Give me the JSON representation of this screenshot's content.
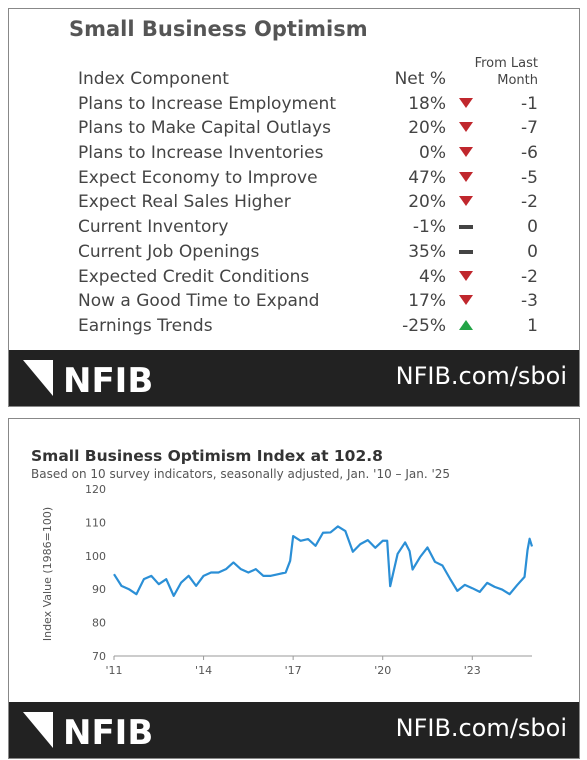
{
  "table": {
    "title": "Small Business Optimism",
    "columns": [
      "Index Component",
      "Net %",
      "From Last Month"
    ],
    "rows": [
      {
        "component": "Plans to Increase Employment",
        "net": "18%",
        "trend": "down",
        "change": "-1"
      },
      {
        "component": "Plans to Make Capital Outlays",
        "net": "20%",
        "trend": "down",
        "change": "-7"
      },
      {
        "component": "Plans to Increase Inventories",
        "net": "0%",
        "trend": "down",
        "change": "-6"
      },
      {
        "component": "Expect Economy to Improve",
        "net": "47%",
        "trend": "down",
        "change": "-5"
      },
      {
        "component": "Expect Real Sales Higher",
        "net": "20%",
        "trend": "down",
        "change": "-2"
      },
      {
        "component": "Current Inventory",
        "net": "-1%",
        "trend": "flat",
        "change": "0"
      },
      {
        "component": "Current Job Openings",
        "net": "35%",
        "trend": "flat",
        "change": "0"
      },
      {
        "component": "Expected Credit Conditions",
        "net": "4%",
        "trend": "down",
        "change": "-2"
      },
      {
        "component": "Now a Good Time to Expand",
        "net": "17%",
        "trend": "down",
        "change": "-3"
      },
      {
        "component": "Earnings Trends",
        "net": "-25%",
        "trend": "up",
        "change": "1"
      }
    ]
  },
  "footer": {
    "logo": "NFIB",
    "url": "NFIB.com/sboi"
  },
  "chart_data": {
    "type": "line",
    "title": "Small Business Optimism Index at 102.8",
    "subtitle": "Based on 10 survey indicators, seasonally adjusted,  Jan. '10 – Jan. '25",
    "y_label": "Index Value (1986=100)",
    "x": [
      2011,
      2011.25,
      2011.5,
      2011.75,
      2012,
      2012.25,
      2012.5,
      2012.75,
      2013,
      2013.25,
      2013.5,
      2013.75,
      2014,
      2014.25,
      2014.5,
      2014.75,
      2015,
      2015.25,
      2015.5,
      2015.75,
      2016,
      2016.25,
      2016.5,
      2016.75,
      2016.9,
      2017,
      2017.25,
      2017.5,
      2017.75,
      2018,
      2018.25,
      2018.5,
      2018.75,
      2019,
      2019.25,
      2019.5,
      2019.75,
      2020,
      2020.15,
      2020.25,
      2020.5,
      2020.75,
      2020.9,
      2021,
      2021.25,
      2021.5,
      2021.75,
      2022,
      2022.25,
      2022.5,
      2022.75,
      2023,
      2023.25,
      2023.5,
      2023.75,
      2024,
      2024.25,
      2024.5,
      2024.75,
      2024.85,
      2024.92,
      2025
    ],
    "series": [
      {
        "name": "Optimism Index",
        "color": "#2b8fd6",
        "values": [
          94.5,
          91,
          90,
          88.5,
          93,
          94,
          91.5,
          93,
          88,
          92,
          94,
          91,
          94,
          95,
          95,
          96,
          98,
          96,
          95,
          96,
          94,
          94,
          94.5,
          95,
          98.5,
          105.9,
          104.5,
          105,
          103,
          106.9,
          107,
          108.8,
          107.4,
          101.2,
          103.5,
          104.7,
          102.4,
          104.5,
          104.5,
          90.9,
          100.6,
          104,
          101.4,
          95.9,
          99.6,
          102.5,
          98.2,
          97.1,
          93.2,
          89.5,
          91.3,
          90.3,
          89.2,
          91.9,
          90.7,
          89.9,
          88.5,
          91.2,
          93.7,
          101.7,
          105.1,
          102.8
        ]
      }
    ],
    "xlim": [
      2011,
      2025
    ],
    "xticks": [
      {
        "value": 2011,
        "label": "'11"
      },
      {
        "value": 2014,
        "label": "'14"
      },
      {
        "value": 2017,
        "label": "'17"
      },
      {
        "value": 2020,
        "label": "'20"
      },
      {
        "value": 2023,
        "label": "'23"
      }
    ],
    "ylim": [
      70,
      120
    ],
    "yticks": [
      70,
      80,
      90,
      100,
      110,
      120
    ],
    "grid": false
  }
}
